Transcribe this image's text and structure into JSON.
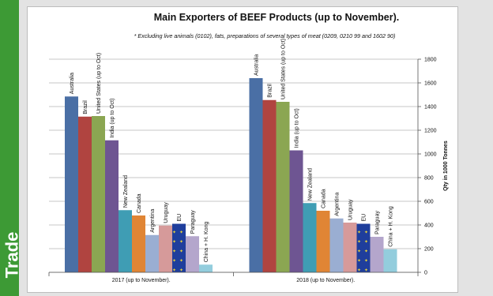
{
  "side_band": {
    "text": "Trade",
    "color": "#3d9a35"
  },
  "chart_data": {
    "type": "bar",
    "title": "Main Exporters of BEEF Products (up to November).",
    "subtitle": "* Excluding live animals (0102), fats, preparations of several types of meat (0209, 0210 99 and 1602 90)",
    "ylabel": "Qty in 1000 Tonnes",
    "ylim": [
      0,
      1800
    ],
    "yticks": [
      "0",
      "200",
      "400",
      "600",
      "800",
      "1000",
      "1200",
      "1400",
      "1600",
      "1800"
    ],
    "grid": true,
    "y_axis_side": "right",
    "categories": [
      "2017 (up to November).",
      "2018 (up to November)."
    ],
    "series": [
      {
        "name": "Australia",
        "color": "#4a6fa5",
        "values": [
          1485,
          1640
        ]
      },
      {
        "name": "Brazil",
        "color": "#b04440",
        "values": [
          1315,
          1455
        ]
      },
      {
        "name": "United States (up to Oct)",
        "color": "#8ba652",
        "values": [
          1320,
          1440
        ]
      },
      {
        "name": "India (up to Oct)",
        "color": "#6e5592",
        "values": [
          1115,
          1030
        ]
      },
      {
        "name": "New Zealand",
        "color": "#3f9db4",
        "values": [
          525,
          585
        ]
      },
      {
        "name": "Canada",
        "color": "#e08535",
        "values": [
          480,
          520
        ]
      },
      {
        "name": "Argentina",
        "color": "#9aaed2",
        "values": [
          315,
          455
        ]
      },
      {
        "name": "Uruguay",
        "color": "#d69a9a",
        "values": [
          395,
          420
        ]
      },
      {
        "name": "EU",
        "color": "#1f3e9c",
        "values": [
          410,
          410
        ]
      },
      {
        "name": "Paraguay",
        "color": "#b4a6cc",
        "values": [
          305,
          300
        ]
      },
      {
        "name": "China + H. Kong",
        "color": "#93cddd",
        "values": [
          65,
          195
        ]
      }
    ]
  }
}
